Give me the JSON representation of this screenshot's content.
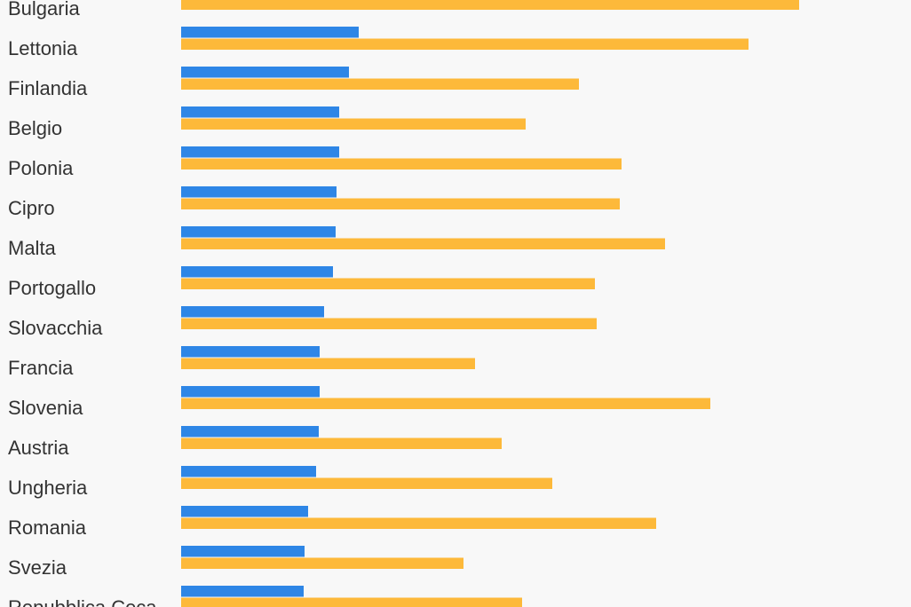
{
  "chart_data": {
    "type": "bar",
    "orientation": "horizontal",
    "categories": [
      "Bulgaria",
      "Lettonia",
      "Finlandia",
      "Belgio",
      "Polonia",
      "Cipro",
      "Malta",
      "Portogallo",
      "Slovacchia",
      "Francia",
      "Slovenia",
      "Austria",
      "Ungheria",
      "Romania",
      "Svezia",
      "Repubblica Ceca"
    ],
    "series": [
      {
        "color": "#2e86e6",
        "values": [
          null,
          200,
          189,
          178,
          178,
          175,
          174,
          171,
          161,
          156,
          156,
          155,
          152,
          143,
          139,
          138
        ]
      },
      {
        "color": "#fdb93a",
        "values": [
          696,
          639,
          448,
          388,
          496,
          494,
          545,
          466,
          468,
          331,
          596,
          361,
          418,
          535,
          318,
          384
        ]
      }
    ],
    "xlim": [
      0,
      822
    ],
    "grid": false,
    "legend": "none"
  }
}
